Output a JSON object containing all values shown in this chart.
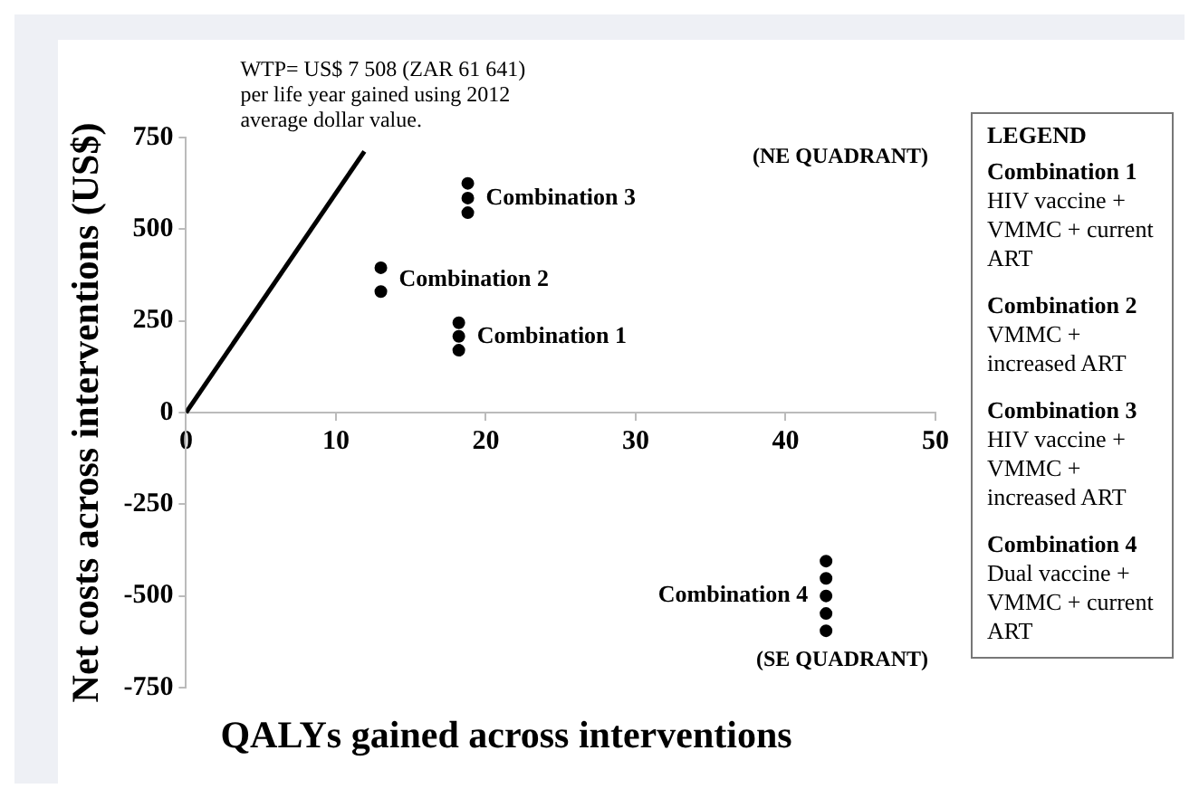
{
  "chart_data": {
    "type": "scatter",
    "xlabel": "QALYs gained across interventions",
    "ylabel": "Net costs across interventions (US$)",
    "xlim": [
      0,
      50
    ],
    "xticks": [
      0,
      10,
      20,
      30,
      40,
      50
    ],
    "ylim": [
      -750,
      750
    ],
    "yticks": [
      750,
      500,
      250,
      0,
      -250,
      -500,
      -750
    ],
    "grid": false,
    "legend": false,
    "marker": "circle",
    "series": [
      {
        "name": "Combination 1",
        "color": "#000000",
        "x": [
          18.2,
          18.2,
          18.2
        ],
        "values": [
          245,
          208,
          170
        ]
      },
      {
        "name": "Combination 2",
        "color": "#000000",
        "x": [
          13,
          13
        ],
        "values": [
          395,
          330
        ]
      },
      {
        "name": "Combination 3",
        "color": "#000000",
        "x": [
          18.8,
          18.8,
          18.8
        ],
        "values": [
          625,
          585,
          545
        ]
      },
      {
        "name": "Combination 4",
        "color": "#000000",
        "x": [
          42.7,
          42.7,
          42.7,
          42.7,
          42.7
        ],
        "values": [
          -405,
          -452,
          -500,
          -548,
          -595
        ]
      },
      {
        "type": "line",
        "color": "#000000",
        "marker": "none",
        "x": [
          0,
          11.9
        ],
        "values": [
          0,
          712
        ]
      }
    ],
    "annotations": [
      "WTP= US$ 7 508 (ZAR 61 641) per life year gained using 2012 average dollar value.",
      "(NE QUADRANT)",
      "(SE QUADRANT)",
      "LEGEND",
      "Combination 1",
      "HIV vaccine + VMMC + current ART",
      "Combination 2",
      "VMMC + increased ART",
      "Combination 3",
      "HIV vaccine + VMMC + increased ART",
      "Combination 4",
      "Dual vaccine + VMMC + current ART"
    ]
  }
}
